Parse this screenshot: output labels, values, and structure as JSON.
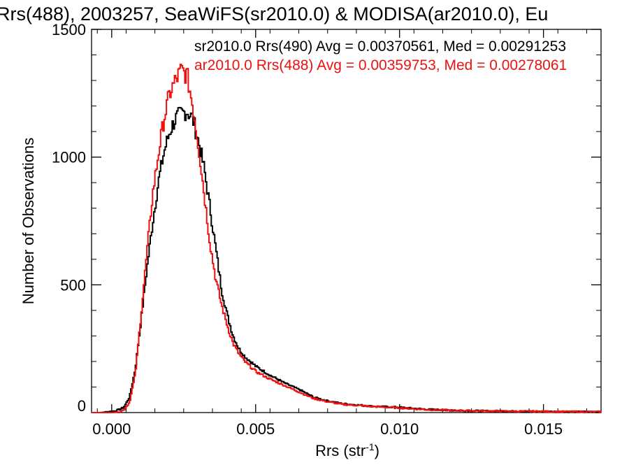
{
  "chart_data": {
    "type": "line",
    "title": "Rrs(488), 2003257, SeaWiFS(sr2010.0) & MODISA(ar2010.0), Eu",
    "xlabel": "Rrs (str",
    "xlabel_sup": "-1",
    "xlabel_end": ")",
    "ylabel": "Number of Observations",
    "xlim": [
      -0.0007,
      0.017
    ],
    "ylim": [
      0,
      1500
    ],
    "x_ticks": [
      0.0,
      0.005,
      0.01,
      0.015
    ],
    "x_tick_labels": [
      "0.000",
      "0.005",
      "0.010",
      "0.015"
    ],
    "y_ticks": [
      0,
      500,
      1000,
      1500
    ],
    "y_tick_labels": [
      "0",
      "500",
      "1000",
      "1500"
    ],
    "grid": false,
    "legend_placement": "top-right",
    "series": [
      {
        "name": "sr2010.0 Rrs(490) Avg = 0.00370561, Med = 0.00291253",
        "color": "#000000",
        "x": [
          -0.0004,
          0.0,
          0.0002,
          0.0004,
          0.0006,
          0.0008,
          0.001,
          0.0012,
          0.0014,
          0.0016,
          0.0018,
          0.002,
          0.0022,
          0.0024,
          0.0026,
          0.0028,
          0.003,
          0.0032,
          0.0034,
          0.0036,
          0.0038,
          0.004,
          0.0042,
          0.0044,
          0.0046,
          0.0048,
          0.005,
          0.0055,
          0.006,
          0.0065,
          0.007,
          0.0075,
          0.008,
          0.009,
          0.01,
          0.011,
          0.012,
          0.013,
          0.014,
          0.015,
          0.016,
          0.017
        ],
        "y": [
          0,
          5,
          10,
          20,
          60,
          170,
          360,
          560,
          740,
          900,
          1020,
          1100,
          1150,
          1170,
          1180,
          1150,
          1060,
          950,
          800,
          640,
          480,
          380,
          300,
          250,
          220,
          200,
          180,
          145,
          115,
          90,
          60,
          45,
          35,
          25,
          20,
          12,
          8,
          6,
          5,
          4,
          3,
          3
        ]
      },
      {
        "name": "ar2010.0 Rrs(488) Avg = 0.00359753, Med = 0.00278061",
        "color": "#ee1111",
        "x": [
          -0.0004,
          0.0,
          0.0002,
          0.0004,
          0.0006,
          0.0008,
          0.001,
          0.0012,
          0.0014,
          0.0016,
          0.0018,
          0.002,
          0.0022,
          0.0024,
          0.0026,
          0.0028,
          0.003,
          0.0032,
          0.0034,
          0.0036,
          0.0038,
          0.004,
          0.0042,
          0.0044,
          0.0046,
          0.0048,
          0.005,
          0.0055,
          0.006,
          0.0065,
          0.007,
          0.0075,
          0.008,
          0.009,
          0.01,
          0.011,
          0.012,
          0.013,
          0.014,
          0.015,
          0.016,
          0.017
        ],
        "y": [
          0,
          0,
          2,
          10,
          40,
          150,
          380,
          620,
          850,
          1010,
          1150,
          1250,
          1300,
          1340,
          1320,
          1200,
          1040,
          850,
          660,
          520,
          420,
          340,
          270,
          230,
          200,
          180,
          160,
          130,
          105,
          80,
          55,
          42,
          32,
          24,
          18,
          11,
          8,
          6,
          5,
          4,
          3,
          3
        ]
      }
    ]
  }
}
